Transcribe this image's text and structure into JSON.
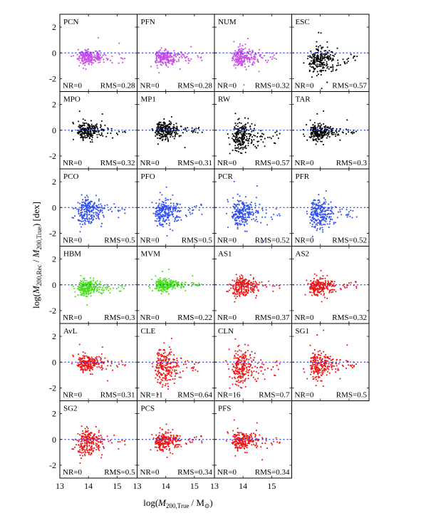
{
  "chart_data": {
    "type": "scatter",
    "xlabel": "log(M200,True / M⊙)",
    "ylabel": "log(M200,Rec / M200,True) [dex]",
    "xlabel_parts": {
      "pre": "log(",
      "m": "M",
      "sub": "200,True",
      "mid": "/ M",
      "sun": "⊙",
      "post": ")"
    },
    "ylabel_parts": {
      "pre": "log(",
      "m1": "M",
      "sub1": "200,Rec",
      "mid": " / ",
      "m2": "M",
      "sub2": "200,True",
      "post": ") [dex]"
    },
    "xlim": [
      13.0,
      15.7
    ],
    "ylim": [
      -3.0,
      3.0
    ],
    "xticks": [
      "13",
      "14",
      "15"
    ],
    "xtick_values": [
      13,
      14,
      15
    ],
    "yticks": [
      "2",
      "0",
      "-2"
    ],
    "ytick_values": [
      2,
      0,
      -2
    ],
    "reference_line": {
      "y": 0,
      "style": "dotted",
      "color": "#1a3cff"
    },
    "panels": [
      {
        "name": "PCN",
        "nr_label": "NR=0",
        "rms_label": "RMS=0.28",
        "nr": 0,
        "rms": 0.28,
        "color": "#c84ce6",
        "bias": -0.35
      },
      {
        "name": "PFN",
        "nr_label": "NR=0",
        "rms_label": "RMS=0.28",
        "nr": 0,
        "rms": 0.28,
        "color": "#c84ce6",
        "bias": -0.35
      },
      {
        "name": "NUM",
        "nr_label": "NR=0",
        "rms_label": "RMS=0.32",
        "nr": 0,
        "rms": 0.32,
        "color": "#c84ce6",
        "bias": -0.35
      },
      {
        "name": "ESC",
        "nr_label": "NR=0",
        "rms_label": "RMS=0.57",
        "nr": 0,
        "rms": 0.57,
        "color": "#000000",
        "bias": -0.6
      },
      {
        "name": "MPO",
        "nr_label": "NR=0",
        "rms_label": "RMS=0.32",
        "nr": 0,
        "rms": 0.32,
        "color": "#000000",
        "bias": -0.05
      },
      {
        "name": "MP1",
        "nr_label": "NR=0",
        "rms_label": "RMS=0.31",
        "nr": 0,
        "rms": 0.31,
        "color": "#000000",
        "bias": 0.0
      },
      {
        "name": "RW",
        "nr_label": "NR=0",
        "rms_label": "RMS=0.57",
        "nr": 0,
        "rms": 0.57,
        "color": "#000000",
        "bias": -0.45
      },
      {
        "name": "TAR",
        "nr_label": "NR=0",
        "rms_label": "RMS=0.3",
        "nr": 0,
        "rms": 0.3,
        "color": "#000000",
        "bias": -0.15
      },
      {
        "name": "PCO",
        "nr_label": "NR=0",
        "rms_label": "RMS=0.5",
        "nr": 0,
        "rms": 0.5,
        "color": "#2f4ff0",
        "bias": -0.3
      },
      {
        "name": "PFO",
        "nr_label": "NR=0",
        "rms_label": "RMS=0.5",
        "nr": 0,
        "rms": 0.5,
        "color": "#2f4ff0",
        "bias": -0.3
      },
      {
        "name": "PCR",
        "nr_label": "NR=0",
        "rms_label": "RMS=0.52",
        "nr": 0,
        "rms": 0.52,
        "color": "#2f4ff0",
        "bias": -0.45
      },
      {
        "name": "PFR",
        "nr_label": "NR=0",
        "rms_label": "RMS=0.52",
        "nr": 0,
        "rms": 0.52,
        "color": "#2f4ff0",
        "bias": -0.45
      },
      {
        "name": "HBM",
        "nr_label": "NR=0",
        "rms_label": "RMS=0.3",
        "nr": 0,
        "rms": 0.3,
        "color": "#44e016",
        "bias": -0.2
      },
      {
        "name": "MVM",
        "nr_label": "NR=0",
        "rms_label": "RMS=0.22",
        "nr": 0,
        "rms": 0.22,
        "color": "#44e016",
        "bias": 0.0
      },
      {
        "name": "AS1",
        "nr_label": "NR=0",
        "rms_label": "RMS=0.37",
        "nr": 0,
        "rms": 0.37,
        "color": "#f01414",
        "bias": -0.15
      },
      {
        "name": "AS2",
        "nr_label": "NR=0",
        "rms_label": "RMS=0.32",
        "nr": 0,
        "rms": 0.32,
        "color": "#f01414",
        "bias": -0.1
      },
      {
        "name": "AvL",
        "nr_label": "NR=0",
        "rms_label": "RMS=0.31",
        "nr": 0,
        "rms": 0.31,
        "color": "#f01414",
        "bias": -0.1
      },
      {
        "name": "CLE",
        "nr_label": "NR=11",
        "rms_label": "RMS=0.64",
        "nr": 11,
        "rms": 0.64,
        "color": "#f01414",
        "bias": -0.3
      },
      {
        "name": "CLN",
        "nr_label": "NR=16",
        "rms_label": "RMS=0.7",
        "nr": 16,
        "rms": 0.7,
        "color": "#f01414",
        "bias": -0.35
      },
      {
        "name": "SG1",
        "nr_label": "NR=0",
        "rms_label": "RMS=0.5",
        "nr": 0,
        "rms": 0.5,
        "color": "#f01414",
        "bias": -0.25
      },
      {
        "name": "SG2",
        "nr_label": "NR=0",
        "rms_label": "RMS=0.5",
        "nr": 0,
        "rms": 0.5,
        "color": "#f01414",
        "bias": -0.25
      },
      {
        "name": "PCS",
        "nr_label": "NR=0",
        "rms_label": "RMS=0.34",
        "nr": 0,
        "rms": 0.34,
        "color": "#f01414",
        "bias": -0.1
      },
      {
        "name": "PFS",
        "nr_label": "NR=0",
        "rms_label": "RMS=0.34",
        "nr": 0,
        "rms": 0.34,
        "color": "#f01414",
        "bias": -0.1
      }
    ]
  }
}
